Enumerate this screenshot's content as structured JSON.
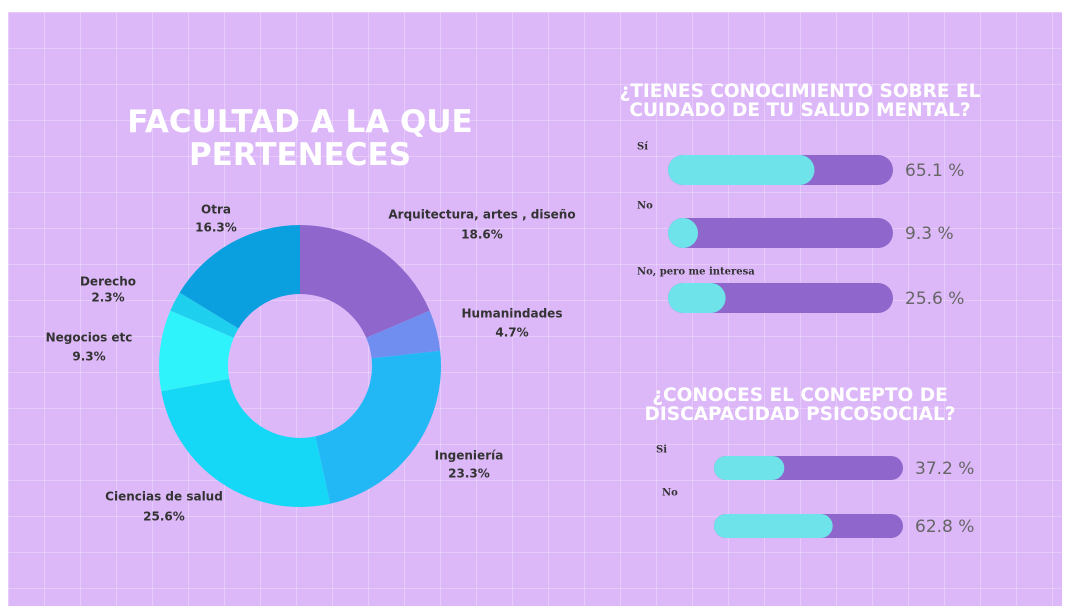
{
  "chart_data": [
    {
      "type": "pie",
      "title": "FACULTAD A LA QUE PERTENECES",
      "categories": [
        "Arquitectura, artes , diseño",
        "Humanindades",
        "Ingeniería",
        "Ciencias de salud",
        "Negocios etc",
        "Derecho",
        "Otra"
      ],
      "values": [
        18.6,
        4.7,
        23.3,
        25.6,
        9.3,
        2.3,
        16.3
      ],
      "value_labels": [
        "18.6%",
        "4.7%",
        "23.3%",
        "25.6%",
        "9.3%",
        "2.3%",
        "16.3%"
      ],
      "colors": [
        "#8e66cc",
        "#6f8ef0",
        "#22b8f5",
        "#14d8f5",
        "#2ff3fb",
        "#1fd0ee",
        "#0aa0e0"
      ]
    },
    {
      "type": "bar",
      "title": "¿TIENES CONOCIMIENTO SOBRE EL CUIDADO DE TU SALUD MENTAL?",
      "categories": [
        "Sí",
        "No",
        "No, pero me interesa"
      ],
      "values": [
        65.1,
        9.3,
        25.6
      ],
      "value_labels": [
        "65.1 %",
        "9.3 %",
        "25.6 %"
      ],
      "xlim": [
        0,
        100
      ],
      "color": "#6ee3ea",
      "track_color": "#8e66cc"
    },
    {
      "type": "bar",
      "title": "¿CONOCES EL CONCEPTO DE DISCAPACIDAD PSICOSOCIAL?",
      "categories": [
        "Si",
        "No"
      ],
      "values": [
        37.2,
        62.8
      ],
      "value_labels": [
        "37.2 %",
        "62.8 %"
      ],
      "xlim": [
        0,
        100
      ],
      "color": "#6ee3ea",
      "track_color": "#8e66cc"
    }
  ]
}
